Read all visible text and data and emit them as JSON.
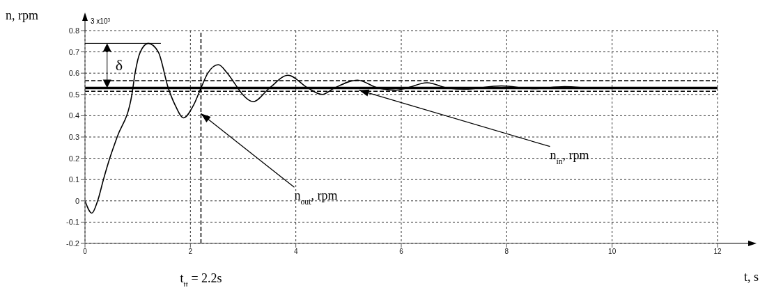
{
  "chart_data": {
    "type": "line",
    "xlabel": "t, s",
    "ylabel": "n, rpm",
    "xlim": [
      0,
      12
    ],
    "xticks": [
      0,
      2,
      4,
      6,
      8,
      10,
      12
    ],
    "ylim": [
      -0.2,
      0.8
    ],
    "yticks": [
      -0.2,
      -0.1,
      0,
      0.1,
      0.2,
      0.3,
      0.4,
      0.5,
      0.6,
      0.7,
      0.8
    ],
    "grid": true,
    "marker": "none",
    "series": [
      {
        "color": "#000000",
        "line_style": "solid",
        "x": [
          0,
          0.13,
          0.24,
          0.35,
          0.47,
          0.61,
          0.89,
          0.95,
          1.05,
          1.2,
          1.39,
          1.58,
          1.71,
          1.87,
          2.06,
          2.2,
          2.33,
          2.53,
          2.7,
          2.9,
          2.99,
          3.19,
          3.5,
          3.85,
          4.23,
          4.5,
          4.73,
          5.17,
          5.56,
          5.9,
          6.1,
          6.49,
          6.89,
          7.2,
          7.9,
          8.5,
          9.1,
          9.7,
          10.3,
          12
        ],
        "values": [
          0,
          -0.058,
          0,
          0.1,
          0.2,
          0.3,
          0.5,
          0.6,
          0.7,
          0.74,
          0.7,
          0.53,
          0.45,
          0.39,
          0.45,
          0.53,
          0.6,
          0.64,
          0.6,
          0.53,
          0.5,
          0.466,
          0.53,
          0.59,
          0.53,
          0.5,
          0.53,
          0.567,
          0.53,
          0.52,
          0.53,
          0.555,
          0.53,
          0.525,
          0.54,
          0.527,
          0.537,
          0.528,
          0.532,
          0.53
        ]
      },
      {
        "color": "#000000",
        "line_style": "solid",
        "x": [
          0,
          12
        ],
        "values": [
          0.53,
          0.53
        ]
      }
    ],
    "ref_lines": [
      {
        "axis": "y",
        "value": 0.565,
        "line_style": "dashed",
        "color": "#000000"
      },
      {
        "axis": "y",
        "value": 0.515,
        "line_style": "dashed",
        "color": "#000000"
      },
      {
        "axis": "x",
        "value": 2.2,
        "line_style": "dashed",
        "color": "#000000",
        "label": "t$_{tt}$ = 2.2s"
      }
    ],
    "annotations": [
      "3 x10$^{3}$",
      "δ",
      {
        "text": "n$_{out}$, rpm",
        "x": 2.2,
        "y": 0.41
      },
      {
        "text": "n$_{in}$, rpm",
        "x": 5.2,
        "y": 0.52
      }
    ]
  }
}
